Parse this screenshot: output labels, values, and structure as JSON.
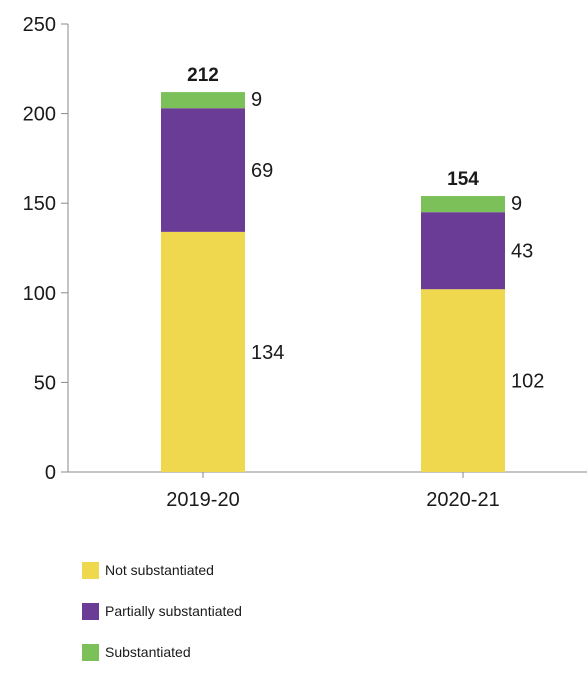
{
  "chart_data": {
    "type": "bar",
    "stacked": true,
    "categories": [
      "2019-20",
      "2020-21"
    ],
    "series": [
      {
        "name": "Not substantiated",
        "values": [
          134,
          102
        ],
        "color": "#f0d84e"
      },
      {
        "name": "Partially substantiated",
        "values": [
          69,
          43
        ],
        "color": "#6b3c96"
      },
      {
        "name": "Substantiated",
        "values": [
          9,
          9
        ],
        "color": "#7cc05a"
      }
    ],
    "totals": [
      "212",
      "154"
    ],
    "segment_labels": [
      [
        "134",
        "69",
        "9"
      ],
      [
        "102",
        "43",
        "9"
      ]
    ],
    "y_ticks": [
      "0",
      "50",
      "100",
      "150",
      "200",
      "250"
    ],
    "ylim": [
      0,
      250
    ],
    "grid": false,
    "legend_position": "bottom-left"
  }
}
